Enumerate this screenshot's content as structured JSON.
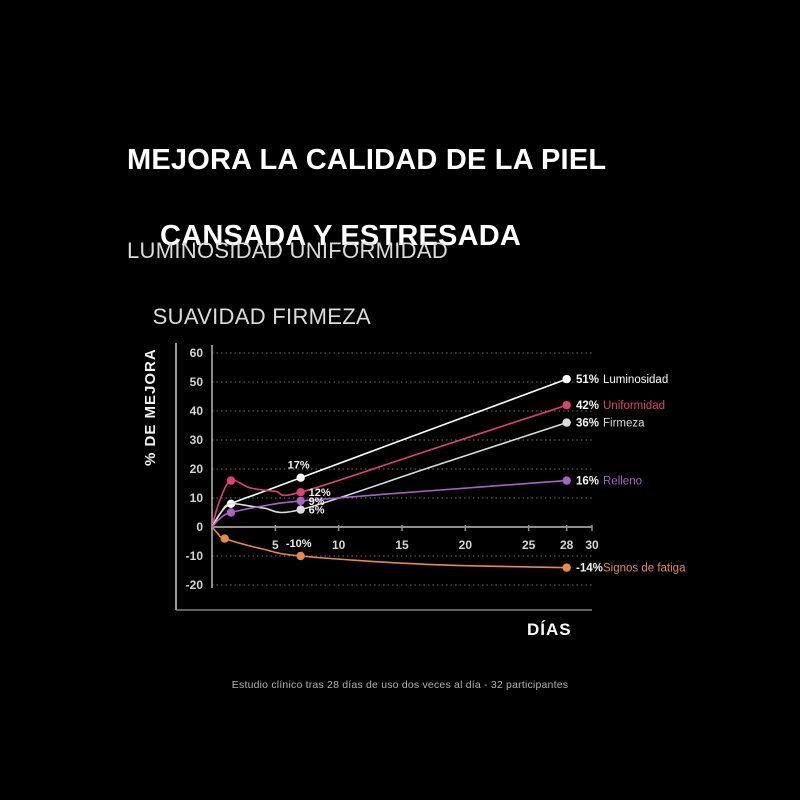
{
  "page": {
    "title_line1": "MEJORA LA CALIDAD DE LA PIEL",
    "title_line2": "CANSADA Y ESTRESADA",
    "subtitle_line1": "LUMINOSIDAD UNIFORMIDAD",
    "subtitle_line2": "SUAVIDAD FIRMEZA",
    "footnote": "Estudio clínico tras 28 días de uso dos veces al día - 32 participantes"
  },
  "chart_data": {
    "type": "line",
    "xlabel": "DÍAS",
    "ylabel": "% DE MEJORA",
    "xlim": [
      0,
      30
    ],
    "ylim": [
      -20,
      60
    ],
    "x_ticks": [
      5,
      10,
      15,
      20,
      25,
      28,
      30
    ],
    "y_ticks": [
      60,
      50,
      40,
      30,
      20,
      10,
      0,
      -10,
      -20
    ],
    "grid": "dashed-horizontal",
    "legend_position": "right-of-line-ends",
    "colors": {
      "grid": "#9a9a9a",
      "zero_axis": "#8f8f8f",
      "y_axis": "#b5b5b5",
      "frame": "#cfcfcf",
      "tick_text": "#d5d5d5",
      "point_label_text": "#f0f0f0",
      "legend_value_text": "#f5f5f5"
    },
    "series": [
      {
        "name": "Luminosidad",
        "color": "#ffffff",
        "legend": {
          "value_label": "51%",
          "name_label": "Luminosidad"
        },
        "points": [
          {
            "day": 1.5,
            "value": 8
          },
          {
            "day": 7,
            "value": 17,
            "label": "17%",
            "label_side": "above"
          },
          {
            "day": 28,
            "value": 51
          }
        ],
        "curve": [
          [
            0,
            0
          ],
          [
            0.7,
            5
          ],
          [
            1.5,
            8
          ],
          [
            4,
            12.1
          ],
          [
            7,
            17
          ],
          [
            17.5,
            34
          ],
          [
            28,
            51
          ]
        ]
      },
      {
        "name": "Uniformidad",
        "color": "#e0406f",
        "legend": {
          "value_label": "42%",
          "name_label": "Uniformidad"
        },
        "points": [
          {
            "day": 1.5,
            "value": 16
          },
          {
            "day": 7,
            "value": 12,
            "label": "12%",
            "label_side": "right"
          },
          {
            "day": 28,
            "value": 42
          }
        ],
        "curve": [
          [
            0,
            0
          ],
          [
            0.6,
            9
          ],
          [
            1.5,
            16
          ],
          [
            3,
            13.5
          ],
          [
            5,
            12.3
          ],
          [
            7,
            12
          ],
          [
            17.5,
            27
          ],
          [
            28,
            42
          ]
        ]
      },
      {
        "name": "Firmeza",
        "color": "#dcdcdc",
        "legend": {
          "value_label": "36%",
          "name_label": "Firmeza"
        },
        "points": [
          {
            "day": 7,
            "value": 6,
            "label": "6%",
            "label_side": "right"
          },
          {
            "day": 28,
            "value": 36
          }
        ],
        "curve": [
          [
            0,
            0
          ],
          [
            0.7,
            5
          ],
          [
            1.5,
            8
          ],
          [
            4,
            6.6
          ],
          [
            7,
            6
          ],
          [
            17.5,
            21
          ],
          [
            28,
            36
          ]
        ]
      },
      {
        "name": "Relleno",
        "color": "#a862c8",
        "legend": {
          "value_label": "16%",
          "name_label": "Relleno"
        },
        "points": [
          {
            "day": 1.5,
            "value": 5
          },
          {
            "day": 7,
            "value": 9,
            "label": "9%",
            "label_side": "right"
          },
          {
            "day": 28,
            "value": 16
          }
        ],
        "curve": [
          [
            0,
            0
          ],
          [
            0.7,
            3.2
          ],
          [
            1.5,
            5
          ],
          [
            4,
            7.2
          ],
          [
            7,
            9
          ],
          [
            17.5,
            12.6
          ],
          [
            28,
            16
          ]
        ]
      },
      {
        "name": "Signos de fatiga",
        "color": "#e98945",
        "legend": {
          "value_label": "-14%",
          "name_label": "Signos de fatiga"
        },
        "points": [
          {
            "day": 1,
            "value": -4
          },
          {
            "day": 7,
            "value": -10,
            "label": "-10%",
            "label_side": "above"
          },
          {
            "day": 28,
            "value": -14
          }
        ],
        "curve": [
          [
            0,
            0
          ],
          [
            0.5,
            -2.4
          ],
          [
            1,
            -4
          ],
          [
            4,
            -7.6
          ],
          [
            7,
            -10
          ],
          [
            17,
            -12.9
          ],
          [
            28,
            -14
          ]
        ]
      }
    ]
  }
}
